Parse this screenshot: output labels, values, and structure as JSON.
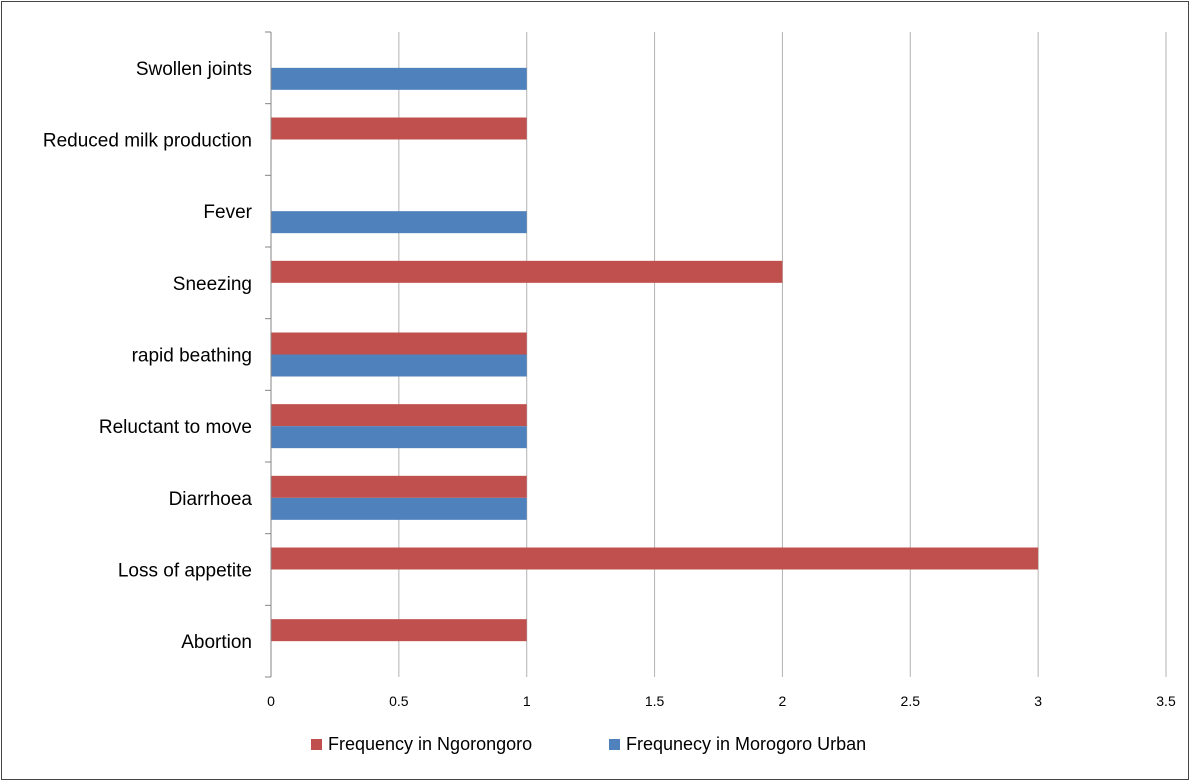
{
  "chart_data": {
    "type": "bar",
    "orientation": "horizontal",
    "categories": [
      "Abortion",
      "Loss of appetite",
      "Diarrhoea",
      "Reluctant to move",
      "rapid beathing",
      "Sneezing",
      "Fever",
      "Reduced milk production",
      "Swollen joints"
    ],
    "series": [
      {
        "name": "Frequency in Ngorongoro",
        "color": "#C0504D",
        "values": [
          1,
          3,
          1,
          1,
          1,
          2,
          null,
          1,
          null
        ]
      },
      {
        "name": "Frequnecy in Morogoro Urban",
        "color": "#4F81BD",
        "values": [
          null,
          null,
          1,
          1,
          1,
          null,
          1,
          null,
          1
        ]
      }
    ],
    "xlim": [
      0,
      3.5
    ],
    "xticks": [
      "0",
      "0.5",
      "1",
      "1.5",
      "2",
      "2.5",
      "3",
      "3.5"
    ],
    "grid": true,
    "legend_position": "bottom",
    "title": "",
    "xlabel": "",
    "ylabel": ""
  }
}
